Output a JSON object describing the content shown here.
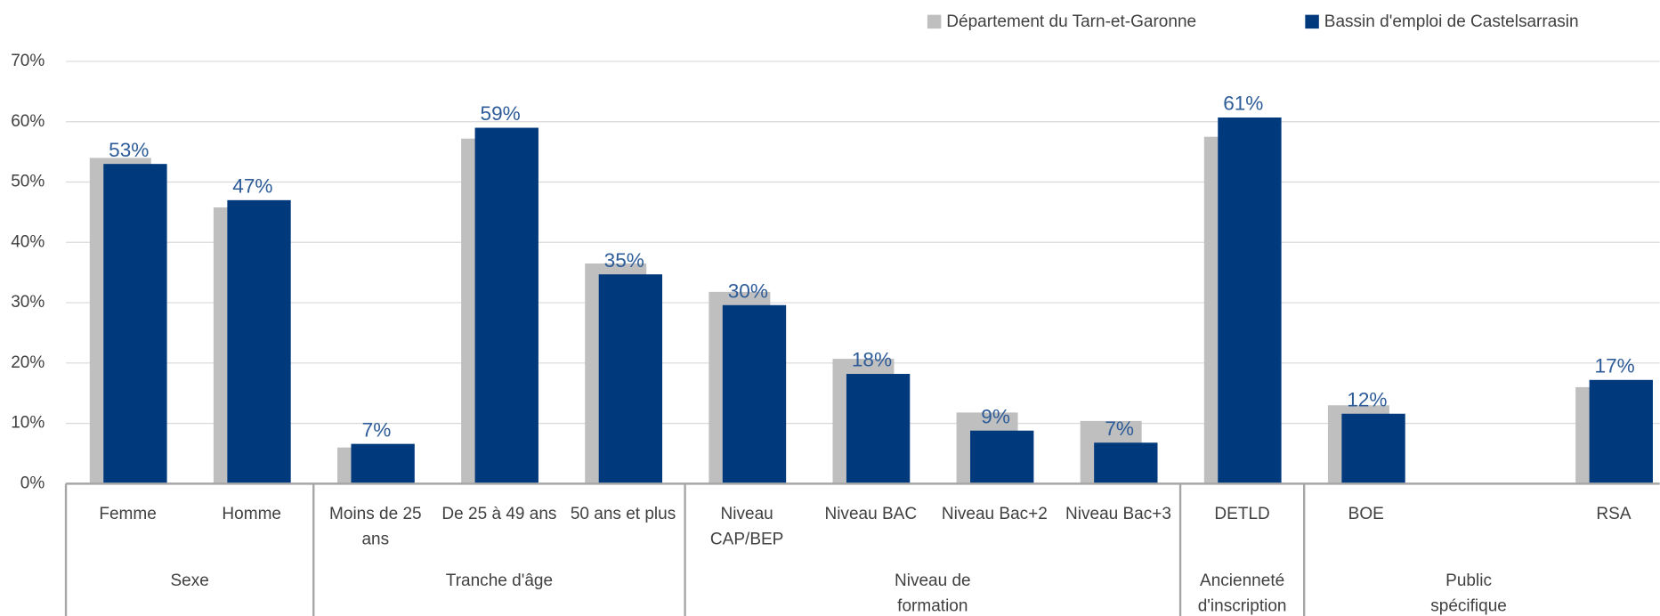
{
  "chart_data": {
    "type": "bar",
    "categories": [
      "Femme",
      "Homme",
      "Moins de 25 ans",
      "De 25 à 49 ans",
      "50 ans et plus",
      "Niveau CAP/BEP",
      "Niveau BAC",
      "Niveau Bac+2",
      "Niveau Bac+3",
      "DETLD",
      "BOE",
      null,
      "RSA"
    ],
    "groups": [
      {
        "name": "Sexe",
        "count": 2
      },
      {
        "name": "Tranche d'âge",
        "count": 3
      },
      {
        "name": "Niveau de formation",
        "count": 4
      },
      {
        "name": "Ancienneté d'inscription",
        "count": 1
      },
      {
        "name": "Public spécifique",
        "count": 3
      }
    ],
    "series": [
      {
        "name": "Département du Tarn-et-Garonne",
        "color": "#bfbfbf",
        "values": [
          54,
          45.8,
          6,
          57.2,
          36.5,
          31.8,
          20.7,
          11.8,
          10.4,
          57.5,
          13,
          null,
          16
        ]
      },
      {
        "name": "Bassin d'emploi de Castelsarrasin",
        "color": "#003a7d",
        "values": [
          53,
          47,
          6.6,
          59,
          34.7,
          29.6,
          18.2,
          8.8,
          6.8,
          60.7,
          11.6,
          null,
          17.2
        ],
        "value_labels": [
          "53%",
          "47%",
          "7%",
          "59%",
          "35%",
          "30%",
          "18%",
          "9%",
          "7%",
          "61%",
          "12%",
          null,
          "17%"
        ]
      }
    ],
    "ylim": [
      0,
      70
    ],
    "yticks": [
      {
        "value": 0,
        "label": "0%"
      },
      {
        "value": 10,
        "label": "10%"
      },
      {
        "value": 20,
        "label": "20%"
      },
      {
        "value": 30,
        "label": "30%"
      },
      {
        "value": 40,
        "label": "40%"
      },
      {
        "value": 50,
        "label": "50%"
      },
      {
        "value": 60,
        "label": "60%"
      },
      {
        "value": 70,
        "label": "70%"
      }
    ],
    "grid": true,
    "legend": "top-right"
  }
}
